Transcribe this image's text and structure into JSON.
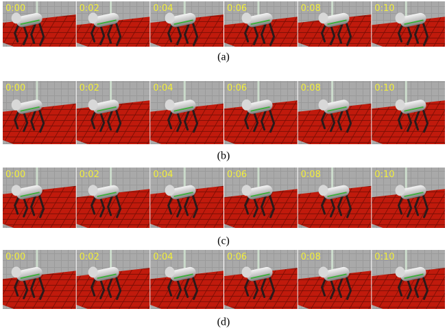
{
  "rows": [
    {
      "caption": "(a)",
      "frames": [
        "0:00",
        "0:02",
        "0:04",
        "0:06",
        "0:08",
        "0:10"
      ]
    },
    {
      "caption": "(b)",
      "frames": [
        "0:00",
        "0:02",
        "0:04",
        "0:06",
        "0:08",
        "0:10"
      ]
    },
    {
      "caption": "(c)",
      "frames": [
        "0:00",
        "0:02",
        "0:04",
        "0:06",
        "0:08",
        "0:10"
      ]
    },
    {
      "caption": "(d)",
      "frames": [
        "0:00",
        "0:02",
        "0:04",
        "0:06",
        "0:08",
        "0:10"
      ]
    }
  ]
}
